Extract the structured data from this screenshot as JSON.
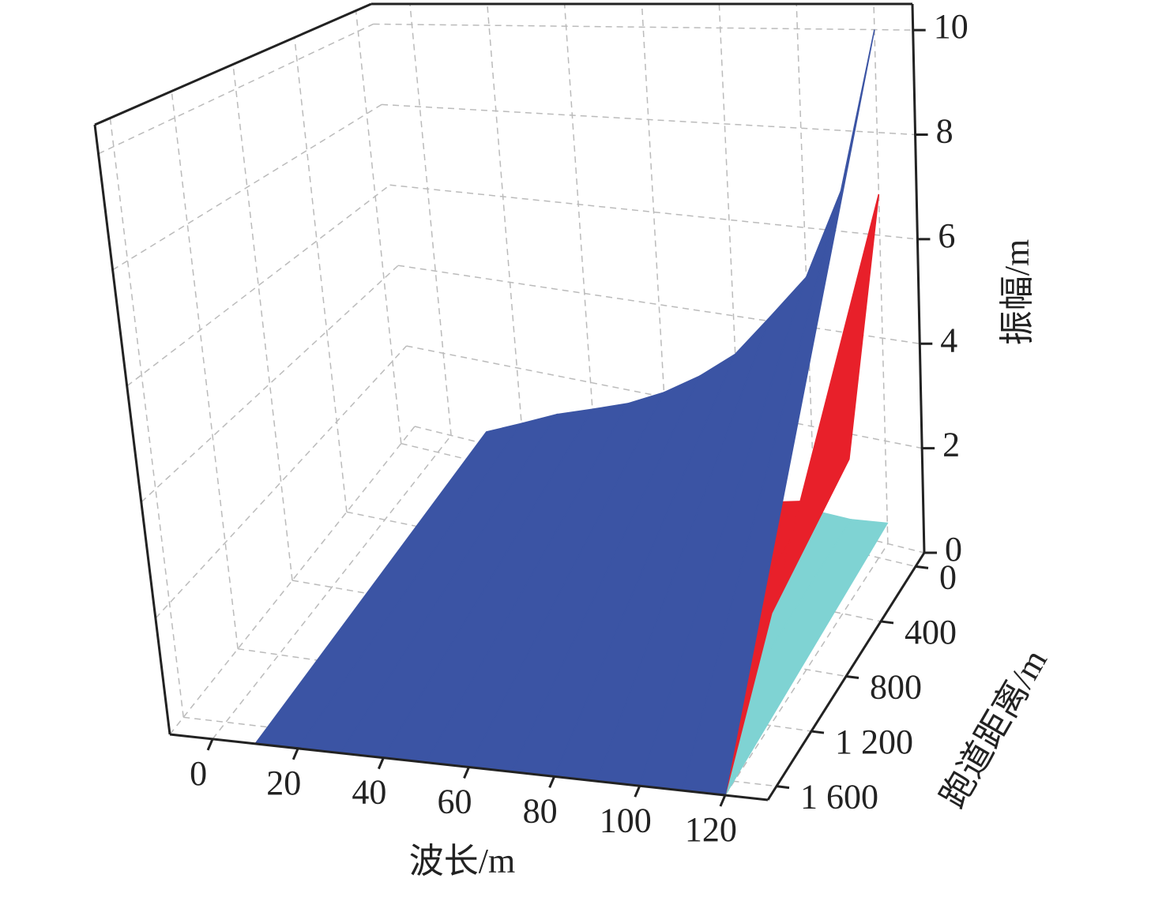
{
  "chart_data": {
    "type": "surface3d",
    "xlabel": "波长/m",
    "ylabel": "跑道距离/m",
    "zlabel": "振幅/m",
    "xlim": [
      -10,
      130
    ],
    "xticks": [
      0,
      20,
      40,
      60,
      80,
      100,
      120
    ],
    "ylim": [
      -100,
      1700
    ],
    "yticks": [
      0,
      400,
      800,
      {
        "value": 1200,
        "label": "1 200"
      },
      {
        "value": 1600,
        "label": "1 600"
      }
    ],
    "zlim": [
      0,
      10.5
    ],
    "zticks": [
      0,
      2,
      4,
      6,
      8,
      10
    ],
    "grid": true,
    "x": [
      10,
      20,
      30,
      40,
      50,
      60,
      70,
      80,
      90,
      100,
      110,
      120
    ],
    "series": [
      {
        "color": "#7fd3d3",
        "values": [
          0.2,
          0.2,
          0.2,
          0.2,
          0.2,
          0.2,
          0.2,
          0.2,
          0.2,
          0.3,
          0.3,
          0.4
        ]
      },
      {
        "color": "#e8202a",
        "values": [
          0.1,
          0.1,
          0.1,
          0.1,
          0.1,
          0.1,
          0.2,
          0.2,
          0.3,
          0.5,
          1.5,
          6.8
        ]
      },
      {
        "color": "#3b54a4",
        "values": [
          0.3,
          0.7,
          1.1,
          1.4,
          1.7,
          2.1,
          2.6,
          3.2,
          4.1,
          5.0,
          6.8,
          10
        ]
      }
    ]
  }
}
